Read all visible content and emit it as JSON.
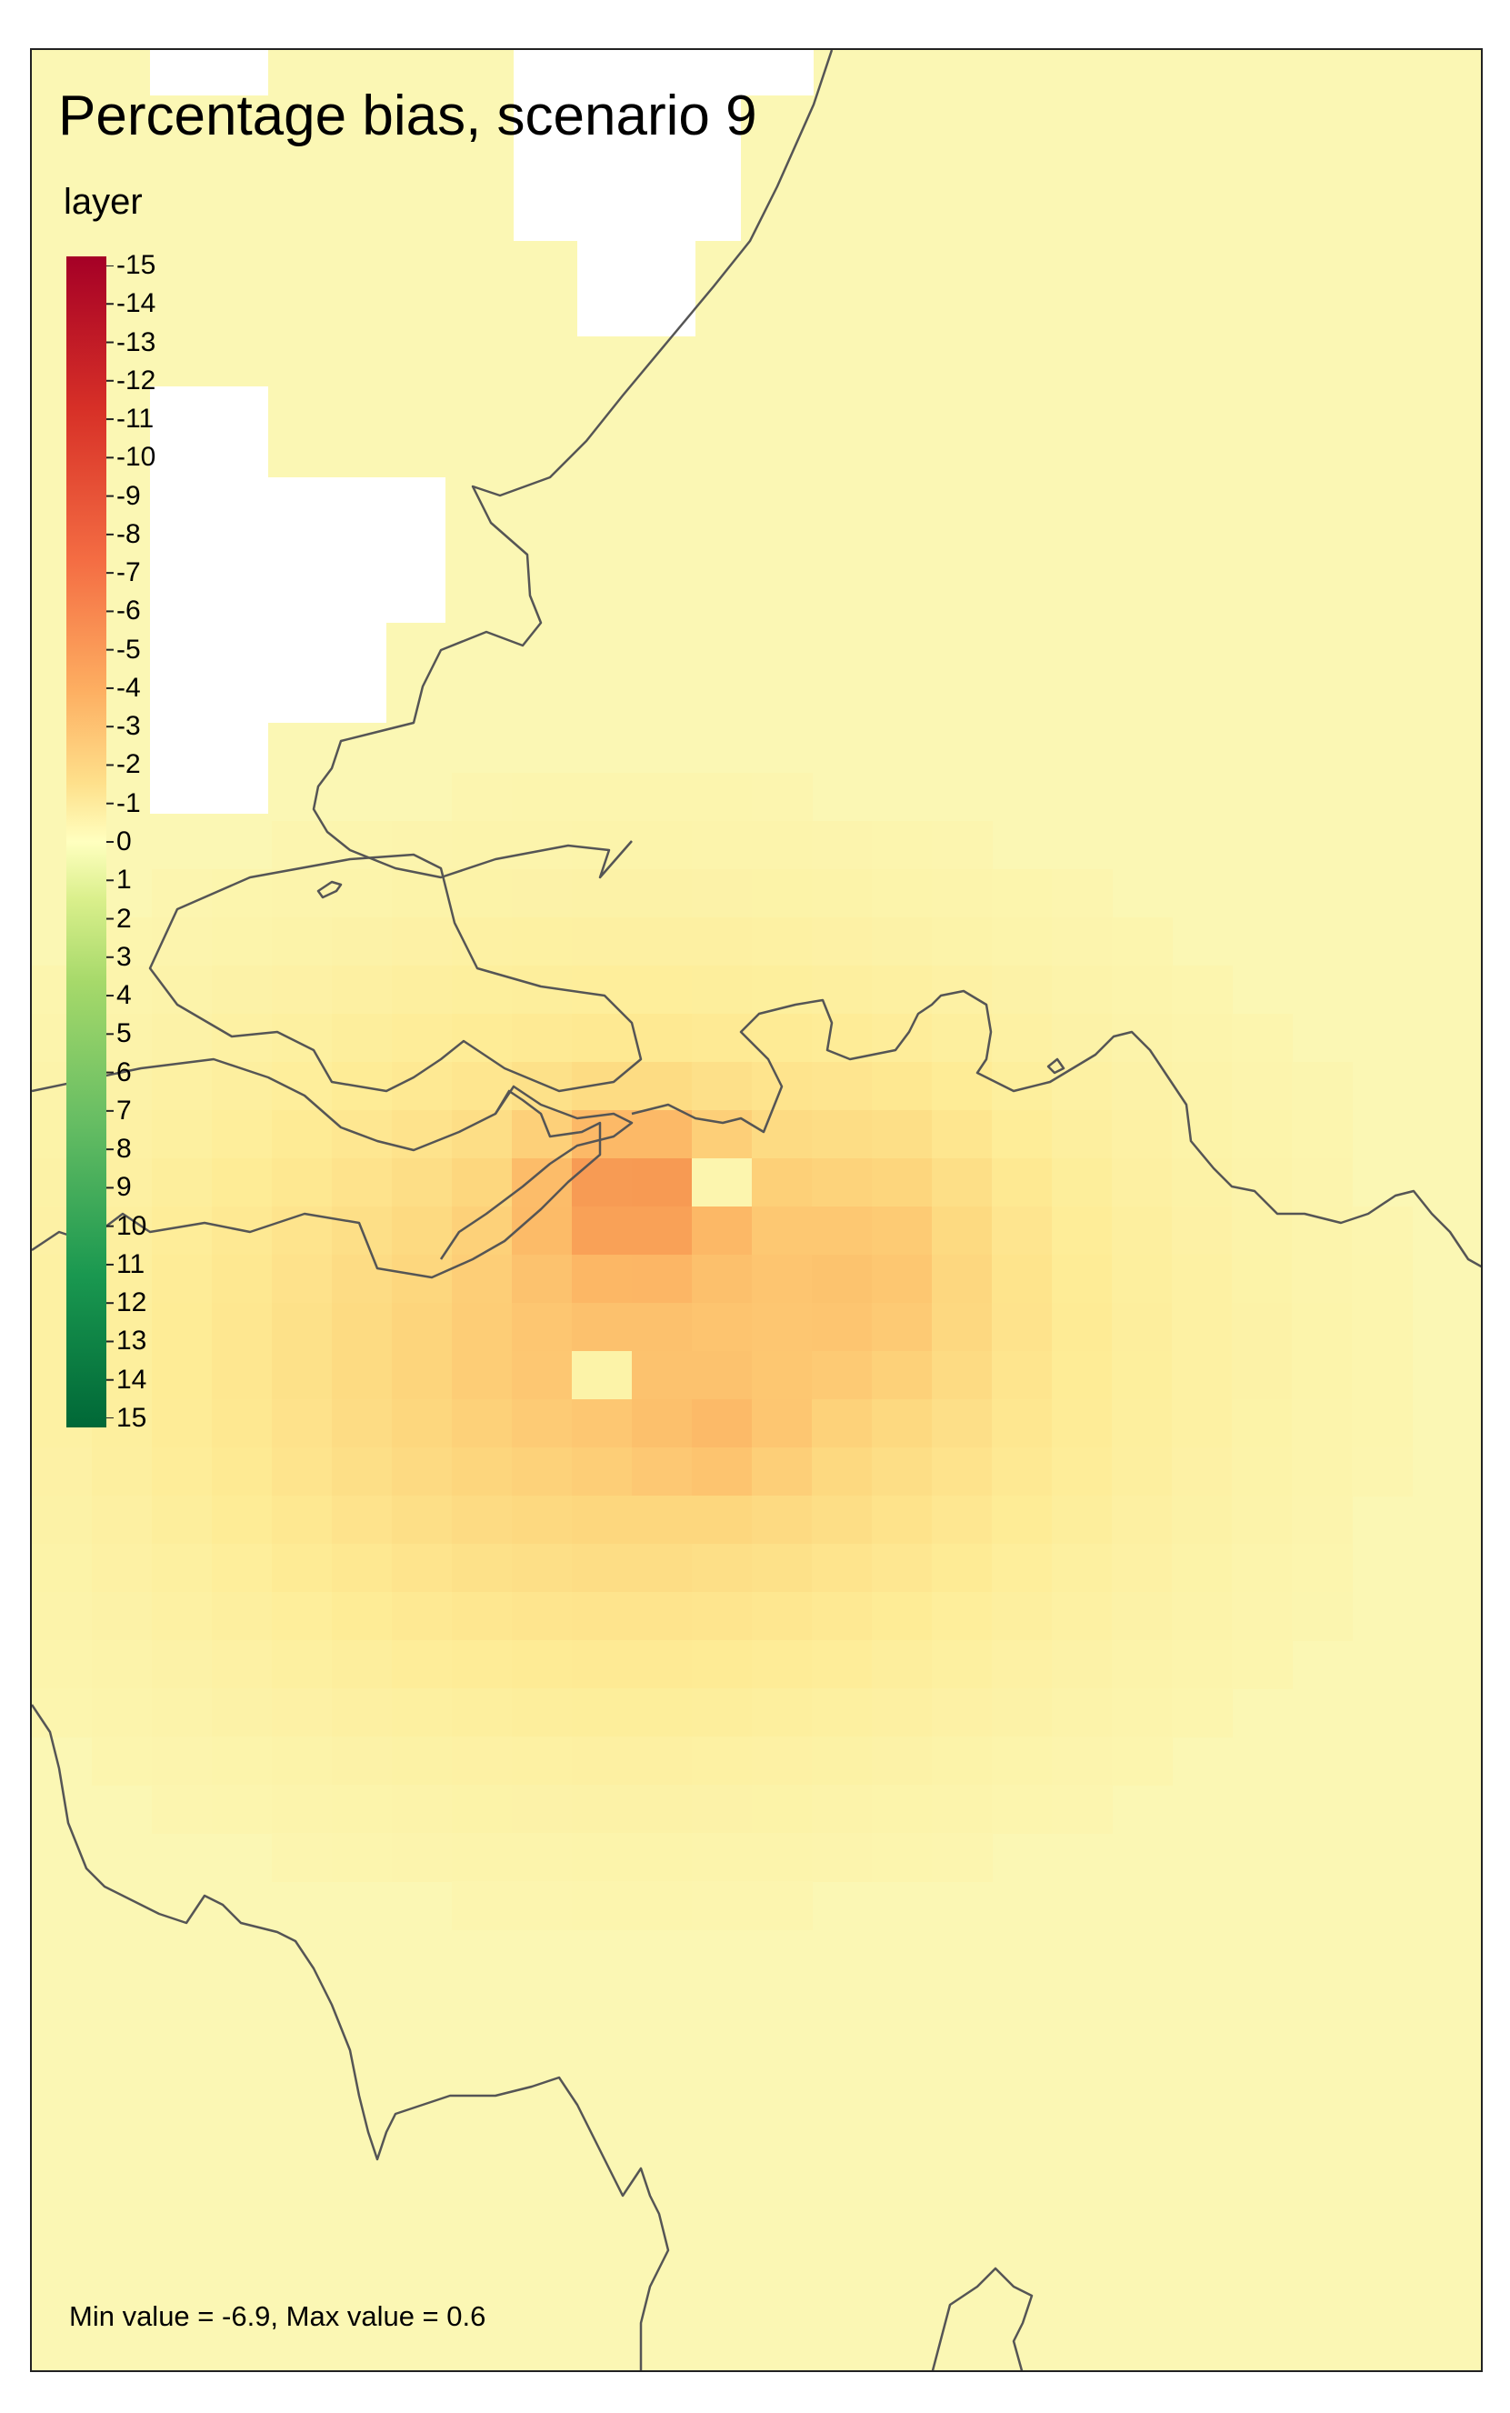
{
  "title": "Percentage bias, scenario 9",
  "legend": {
    "title": "layer",
    "labels": [
      "-15",
      "-14",
      "-13",
      "-12",
      "-11",
      "-10",
      "-9",
      "-8",
      "-7",
      "-6",
      "-5",
      "-4",
      "-3",
      "-2",
      "-1",
      "0",
      "1",
      "2",
      "3",
      "4",
      "5",
      "6",
      "7",
      "8",
      "9",
      "10",
      "11",
      "12",
      "13",
      "14",
      "15"
    ]
  },
  "footer": "Min value = -6.9, Max value = 0.6",
  "colors": {
    "background_fill": "#fbf7b4",
    "scale_min": "#a50026",
    "scale_mid": "#ffffbf",
    "scale_max": "#006837",
    "boundary_line": "#555555",
    "frame": "#222222"
  }
}
